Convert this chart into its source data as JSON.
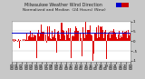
{
  "title_line1": "Milwaukee Weather Wind Direction",
  "title_line2": "Normalized and Median  (24 Hours) (New)",
  "plot_bg": "#ffffff",
  "outer_bg": "#c8c8c8",
  "bar_color": "#dd0000",
  "median_color": "#0000cc",
  "median_value": 0.42,
  "ylim": [
    -1.05,
    1.05
  ],
  "ytick_values": [
    -1.0,
    -0.5,
    0.0,
    0.5,
    1.0
  ],
  "ytick_labels": [
    "-1",
    "-.5",
    "0",
    ".5",
    "1"
  ],
  "legend_blue": "#0000cc",
  "legend_red": "#cc0000",
  "n_points": 144,
  "title_fontsize": 3.5,
  "tick_fontsize": 2.8
}
